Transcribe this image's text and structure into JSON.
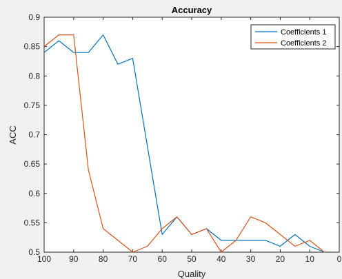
{
  "chart_data": {
    "type": "line",
    "title": "Accuracy",
    "xlabel": "Quality",
    "ylabel": "ACC",
    "xlim": [
      100,
      0
    ],
    "ylim": [
      0.5,
      0.9
    ],
    "x_ticks": [
      "100",
      "90",
      "80",
      "70",
      "60",
      "50",
      "40",
      "30",
      "20",
      "10",
      "0"
    ],
    "y_ticks": [
      "0.5",
      "0.55",
      "0.6",
      "0.65",
      "0.7",
      "0.75",
      "0.8",
      "0.85",
      "0.9"
    ],
    "grid": false,
    "legend_position": "top-right",
    "x": [
      100,
      95,
      90,
      85,
      80,
      75,
      70,
      65,
      60,
      55,
      50,
      45,
      40,
      35,
      30,
      25,
      20,
      15,
      10,
      5
    ],
    "series": [
      {
        "name": "Coefficients 1",
        "color": "#0072BD",
        "values": [
          0.84,
          0.86,
          0.84,
          0.84,
          0.87,
          0.82,
          0.83,
          0.68,
          0.53,
          0.56,
          0.53,
          0.54,
          0.52,
          0.52,
          0.52,
          0.52,
          0.51,
          0.53,
          0.51,
          0.5
        ]
      },
      {
        "name": "Coefficients 2",
        "color": "#D95319",
        "values": [
          0.85,
          0.87,
          0.87,
          0.64,
          0.54,
          0.52,
          0.5,
          0.51,
          0.54,
          0.56,
          0.53,
          0.54,
          0.5,
          0.52,
          0.56,
          0.55,
          0.53,
          0.51,
          0.52,
          0.5
        ]
      }
    ]
  }
}
